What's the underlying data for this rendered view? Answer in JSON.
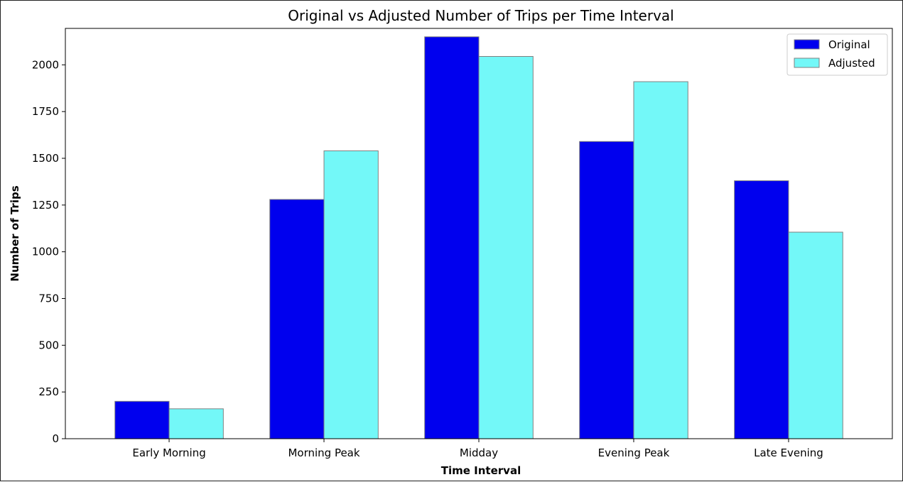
{
  "chart_data": {
    "type": "bar",
    "title": "Original vs Adjusted Number of Trips per Time Interval",
    "xlabel": "Time Interval",
    "ylabel": "Number of Trips",
    "categories": [
      "Early Morning",
      "Morning Peak",
      "Midday",
      "Evening Peak",
      "Late Evening"
    ],
    "series": [
      {
        "name": "Original",
        "color": "#0000ee",
        "values": [
          200,
          1280,
          2150,
          1590,
          1380
        ]
      },
      {
        "name": "Adjusted",
        "color": "#73f8f8",
        "values": [
          160,
          1540,
          2045,
          1910,
          1105
        ]
      }
    ],
    "ylim": [
      0,
      2195
    ],
    "yticks": [
      0,
      250,
      500,
      750,
      1000,
      1250,
      1500,
      1750,
      2000
    ],
    "grid": false,
    "legend_position": "top-right",
    "bar_edge_color": "#808080"
  }
}
